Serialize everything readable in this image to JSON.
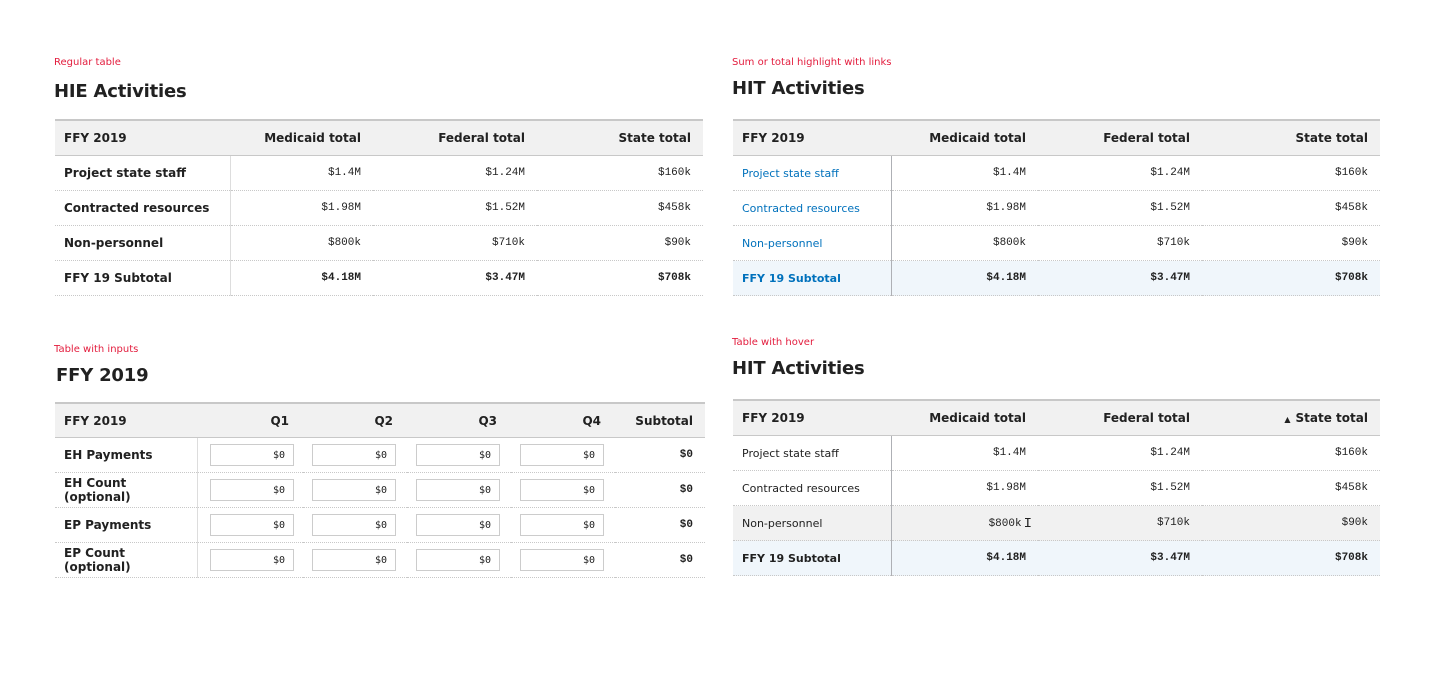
{
  "panels": [
    {
      "id": "regular",
      "caption": "Regular table",
      "title": "HIE Activities",
      "columns": [
        "FFY 2019",
        "Medicaid total",
        "Federal total",
        "State total"
      ],
      "rows": [
        {
          "label": "Project state staff",
          "values": [
            "$1.4M",
            "$1.24M",
            "$160k"
          ]
        },
        {
          "label": "Contracted resources",
          "values": [
            "$1.98M",
            "$1.52M",
            "$458k"
          ]
        },
        {
          "label": "Non-personnel",
          "values": [
            "$800k",
            "$710k",
            "$90k"
          ]
        },
        {
          "label": "FFY 19 Subtotal",
          "values": [
            "$4.18M",
            "$3.47M",
            "$708k"
          ],
          "subtotal": true
        }
      ]
    },
    {
      "id": "links",
      "caption": "Sum or total highlight with links",
      "title": "HIT Activities",
      "columns": [
        "FFY 2019",
        "Medicaid total",
        "Federal total",
        "State total"
      ],
      "rows": [
        {
          "label": "Project state staff",
          "values": [
            "$1.4M",
            "$1.24M",
            "$160k"
          ]
        },
        {
          "label": "Contracted resources",
          "values": [
            "$1.98M",
            "$1.52M",
            "$458k"
          ]
        },
        {
          "label": "Non-personnel",
          "values": [
            "$800k",
            "$710k",
            "$90k"
          ]
        },
        {
          "label": "FFY 19 Subtotal",
          "values": [
            "$4.18M",
            "$3.47M",
            "$708k"
          ],
          "subtotal": true
        }
      ],
      "link_color": "#0071bc",
      "highlight_color": "#f0f6fb"
    },
    {
      "id": "inputs",
      "caption": "Table with inputs",
      "title": "FFY 2019",
      "columns": [
        "FFY 2019",
        "Q1",
        "Q2",
        "Q3",
        "Q4",
        "Subtotal"
      ],
      "rows": [
        {
          "label": "EH Payments",
          "inputs": [
            "$0",
            "$0",
            "$0",
            "$0"
          ],
          "subtotal": "$0"
        },
        {
          "label": "EH Count (optional)",
          "inputs": [
            "$0",
            "$0",
            "$0",
            "$0"
          ],
          "subtotal": "$0"
        },
        {
          "label": "EP Payments",
          "inputs": [
            "$0",
            "$0",
            "$0",
            "$0"
          ],
          "subtotal": "$0"
        },
        {
          "label": "EP Count (optional)",
          "inputs": [
            "$0",
            "$0",
            "$0",
            "$0"
          ],
          "subtotal": "$0"
        }
      ]
    },
    {
      "id": "hover",
      "caption": "Table with hover",
      "title": "HIT Activities",
      "columns": [
        "FFY 2019",
        "Medicaid total",
        "Federal total",
        "State total"
      ],
      "sorted_column": "State total",
      "sort_icon": "caret-up-icon",
      "rows": [
        {
          "label": "Project state staff",
          "values": [
            "$1.4M",
            "$1.24M",
            "$160k"
          ]
        },
        {
          "label": "Contracted resources",
          "values": [
            "$1.98M",
            "$1.52M",
            "$458k"
          ]
        },
        {
          "label": "Non-personnel",
          "values": [
            "$800k",
            "$710k",
            "$90k"
          ],
          "hovered": true
        },
        {
          "label": "FFY 19 Subtotal",
          "values": [
            "$4.18M",
            "$3.47M",
            "$708k"
          ],
          "subtotal": true
        }
      ]
    }
  ],
  "accent_color": "#e31c3d"
}
